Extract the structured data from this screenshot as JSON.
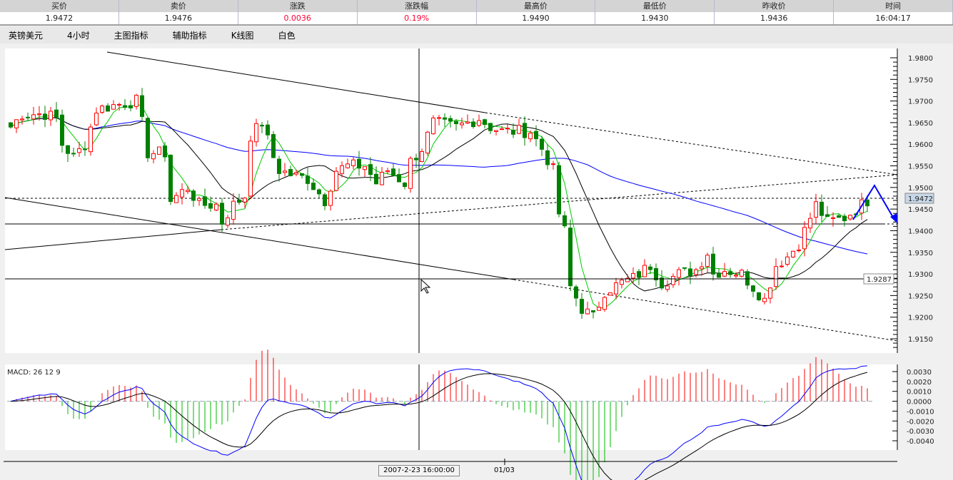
{
  "quote_header": {
    "columns": [
      "买价",
      "卖价",
      "涨跌",
      "涨跌幅",
      "最高价",
      "最低价",
      "昨收价",
      "时间"
    ],
    "values": [
      "1.9472",
      "1.9476",
      "0.0036",
      "0.19%",
      "1.9490",
      "1.9430",
      "1.9436",
      "16:04:17"
    ],
    "colors": {
      "change": "#ff0033"
    }
  },
  "toolbar": {
    "items": [
      "英镑美元",
      "4小时",
      "主图指标",
      "辅助指标",
      "K线图",
      "白色"
    ]
  },
  "chart_data": [
    {
      "type": "candlestick",
      "title": "",
      "y_ticks": [
        "1.9800",
        "1.9750",
        "1.9700",
        "1.9650",
        "1.9600",
        "1.9550",
        "1.9500",
        "1.9450",
        "1.9400",
        "1.9350",
        "1.9300",
        "1.9250",
        "1.9200",
        "1.9150"
      ],
      "ylim": [
        1.9135,
        1.981
      ],
      "current_price_label": "1.9472",
      "crosshair_price_label": "1.9287",
      "close_path": [
        [
          0,
          1.964
        ],
        [
          2,
          1.967
        ],
        [
          6,
          1.967
        ],
        [
          8,
          1.966
        ],
        [
          9,
          1.96
        ],
        [
          11,
          1.957
        ],
        [
          13,
          1.96
        ],
        [
          15,
          1.968
        ],
        [
          18,
          1.969
        ],
        [
          22,
          1.97
        ],
        [
          23,
          1.965
        ],
        [
          24,
          1.958
        ],
        [
          27,
          1.958
        ],
        [
          28,
          1.947
        ],
        [
          31,
          1.95
        ],
        [
          33,
          1.946
        ],
        [
          36,
          1.946
        ],
        [
          37,
          1.942
        ],
        [
          39,
          1.946
        ],
        [
          41,
          1.948
        ],
        [
          42,
          1.962
        ],
        [
          44,
          1.965
        ],
        [
          46,
          1.957
        ],
        [
          47,
          1.954
        ],
        [
          49,
          1.953
        ],
        [
          52,
          1.952
        ],
        [
          55,
          1.947
        ],
        [
          57,
          1.954
        ],
        [
          59,
          1.955
        ],
        [
          62,
          1.955
        ],
        [
          64,
          1.951
        ],
        [
          66,
          1.954
        ],
        [
          69,
          1.951
        ],
        [
          70,
          1.956
        ],
        [
          72,
          1.959
        ],
        [
          74,
          1.965
        ],
        [
          78,
          1.964
        ],
        [
          82,
          1.966
        ],
        [
          84,
          1.964
        ],
        [
          86,
          1.963
        ],
        [
          88,
          1.963
        ],
        [
          91,
          1.963
        ],
        [
          93,
          1.959
        ],
        [
          95,
          1.954
        ],
        [
          96,
          1.944
        ],
        [
          97,
          1.94
        ],
        [
          98,
          1.927
        ],
        [
          100,
          1.922
        ],
        [
          102,
          1.92
        ],
        [
          104,
          1.926
        ],
        [
          107,
          1.928
        ],
        [
          109,
          1.929
        ],
        [
          112,
          1.932
        ],
        [
          114,
          1.928
        ],
        [
          117,
          1.93
        ],
        [
          120,
          1.931
        ],
        [
          122,
          1.935
        ],
        [
          123,
          1.93
        ],
        [
          125,
          1.931
        ],
        [
          128,
          1.93
        ],
        [
          130,
          1.927
        ],
        [
          132,
          1.924
        ],
        [
          134,
          1.932
        ],
        [
          136,
          1.934
        ],
        [
          138,
          1.937
        ],
        [
          141,
          1.946
        ],
        [
          143,
          1.942
        ],
        [
          146,
          1.943
        ],
        [
          148,
          1.945
        ],
        [
          150,
          1.947
        ]
      ],
      "colors": {
        "up": "#ff0000",
        "down": "#008000",
        "ma_long": "#0000ff",
        "ma_mid": "#000000",
        "ma_short": "#00cc00"
      }
    },
    {
      "type": "macd",
      "label": "MACD: 26 12 9",
      "y_ticks": [
        "0.0030",
        "0.0020",
        "0.0010",
        "0.0000",
        "-0.0010",
        "-0.0020",
        "-0.0030",
        "-0.0040"
      ],
      "ylim": [
        -0.0046,
        0.0034
      ]
    }
  ],
  "time_axis": {
    "cursor_date": "2007-2-23 16:00:00",
    "tick": "01/03"
  }
}
